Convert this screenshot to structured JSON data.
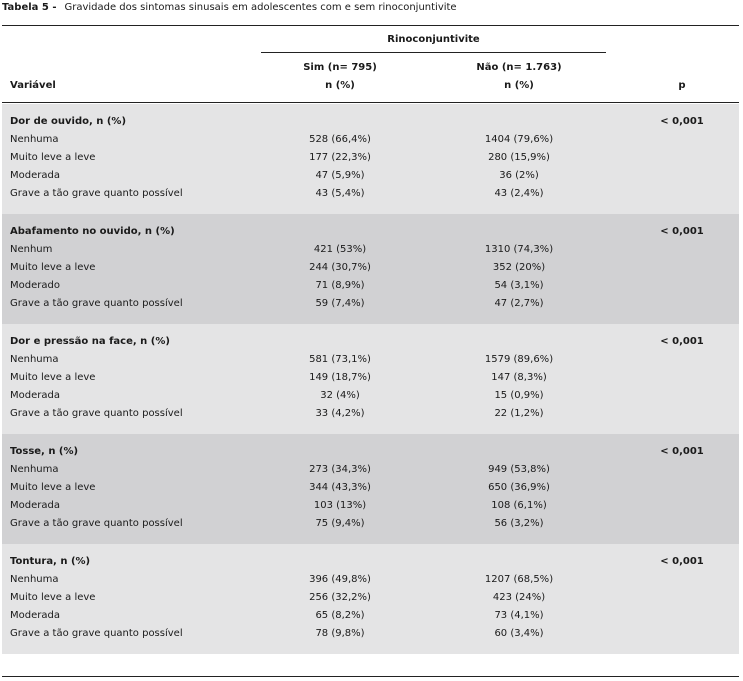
{
  "caption": {
    "label": "Tabela 5 -",
    "text": "Gravidade dos sintomas sinusais em adolescentes com e sem rinoconjuntivite"
  },
  "header": {
    "group": "Rinoconjuntivite",
    "variable": "Variável",
    "sim_label": "Sim (n= 795)",
    "sim_unit": "n (%)",
    "nao_label": "Não  (n= 1.763)",
    "nao_unit": "n (%)",
    "p": "p"
  },
  "sections": [
    {
      "title": "Dor de ouvido, n (%)",
      "p": "< 0,001",
      "rows": [
        {
          "label": "Nenhuma",
          "sim": "528 (66,4%)",
          "nao": "1404 (79,6%)"
        },
        {
          "label": "Muito leve a leve",
          "sim": "177 (22,3%)",
          "nao": "280 (15,9%)"
        },
        {
          "label": "Moderada",
          "sim": "47 (5,9%)",
          "nao": "36 (2%)"
        },
        {
          "label": "Grave a tão grave quanto possível",
          "sim": "43 (5,4%)",
          "nao": "43 (2,4%)"
        }
      ]
    },
    {
      "title": "Abafamento no ouvido, n (%)",
      "p": "< 0,001",
      "rows": [
        {
          "label": "Nenhum",
          "sim": "421 (53%)",
          "nao": "1310 (74,3%)"
        },
        {
          "label": "Muito leve a leve",
          "sim": "244 (30,7%)",
          "nao": "352 (20%)"
        },
        {
          "label": "Moderado",
          "sim": "71 (8,9%)",
          "nao": "54 (3,1%)"
        },
        {
          "label": "Grave a tão grave quanto possível",
          "sim": "59 (7,4%)",
          "nao": "47 (2,7%)"
        }
      ]
    },
    {
      "title": "Dor e pressão na face, n (%)",
      "p": "< 0,001",
      "rows": [
        {
          "label": "Nenhuma",
          "sim": "581 (73,1%)",
          "nao": "1579 (89,6%)"
        },
        {
          "label": "Muito leve a leve",
          "sim": "149 (18,7%)",
          "nao": "147 (8,3%)"
        },
        {
          "label": "Moderada",
          "sim": "32 (4%)",
          "nao": "15 (0,9%)"
        },
        {
          "label": "Grave a tão grave quanto possível",
          "sim": "33 (4,2%)",
          "nao": "22 (1,2%)"
        }
      ]
    },
    {
      "title": "Tosse, n (%)",
      "p": "< 0,001",
      "rows": [
        {
          "label": "Nenhuma",
          "sim": "273 (34,3%)",
          "nao": "949 (53,8%)"
        },
        {
          "label": "Muito leve a leve",
          "sim": "344 (43,3%)",
          "nao": "650 (36,9%)"
        },
        {
          "label": "Moderada",
          "sim": "103 (13%)",
          "nao": "108 (6,1%)"
        },
        {
          "label": "Grave a tão grave quanto possível",
          "sim": "75 (9,4%)",
          "nao": "56 (3,2%)"
        }
      ]
    },
    {
      "title": "Tontura, n (%)",
      "p": "< 0,001",
      "rows": [
        {
          "label": "Nenhuma",
          "sim": "396 (49,8%)",
          "nao": "1207 (68,5%)"
        },
        {
          "label": "Muito leve a leve",
          "sim": "256 (32,2%)",
          "nao": "423 (24%)"
        },
        {
          "label": "Moderada",
          "sim": "65 (8,2%)",
          "nao": "73 (4,1%)"
        },
        {
          "label": "Grave a tão grave quanto possível",
          "sim": "78 (9,8%)",
          "nao": "60 (3,4%)"
        }
      ]
    }
  ]
}
